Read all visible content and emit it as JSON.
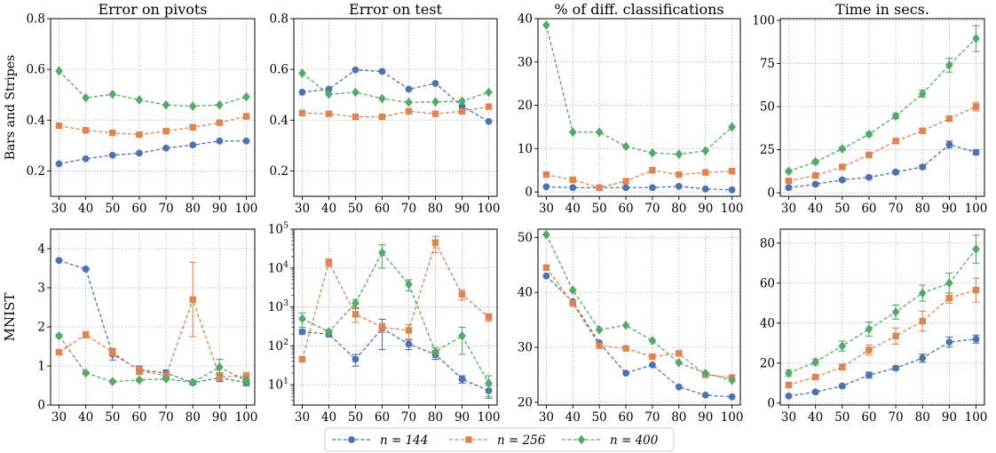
{
  "figure": {
    "col_titles": [
      "Error on pivots",
      "Error on test",
      "% of diff. classifications",
      "Time in secs."
    ],
    "row_labels": [
      "Bars and Stripes",
      "MNIST"
    ],
    "legend": [
      {
        "label": "n = 144",
        "color": "#4c72b0",
        "marker": "circle"
      },
      {
        "label": "n = 256",
        "color": "#dd8452",
        "marker": "square"
      },
      {
        "label": "n = 400",
        "color": "#55a868",
        "marker": "diamond"
      }
    ]
  },
  "chart_data": [
    {
      "type": "line",
      "title": "Error on pivots",
      "row": "Bars and Stripes",
      "x": [
        30,
        40,
        50,
        60,
        70,
        80,
        90,
        100
      ],
      "xticks": [
        "30",
        "40",
        "50",
        "60",
        "70",
        "80",
        "90",
        "100"
      ],
      "ylim": [
        0.1,
        0.8
      ],
      "yscale": "linear",
      "yticks": [
        0.2,
        0.4,
        0.6,
        0.8
      ],
      "ytick_labels": [
        "0.2",
        "0.4",
        "0.6",
        "0.8"
      ],
      "grid": true,
      "series": [
        {
          "name": "n = 144",
          "values": [
            0.228,
            0.248,
            0.262,
            0.27,
            0.29,
            0.302,
            0.318,
            0.318
          ]
        },
        {
          "name": "n = 256",
          "values": [
            0.378,
            0.36,
            0.35,
            0.343,
            0.357,
            0.372,
            0.39,
            0.415
          ]
        },
        {
          "name": "n = 400",
          "values": [
            0.594,
            0.488,
            0.502,
            0.48,
            0.46,
            0.455,
            0.46,
            0.492
          ]
        }
      ]
    },
    {
      "type": "line",
      "title": "Error on test",
      "row": "Bars and Stripes",
      "x": [
        30,
        40,
        50,
        60,
        70,
        80,
        90,
        100
      ],
      "xticks": [
        "30",
        "40",
        "50",
        "60",
        "70",
        "80",
        "90",
        "100"
      ],
      "ylim": [
        0.1,
        0.8
      ],
      "yscale": "linear",
      "yticks": [
        0.2,
        0.4,
        0.6,
        0.8
      ],
      "ytick_labels": [
        "0.2",
        "0.4",
        "0.6",
        "0.8"
      ],
      "grid": true,
      "series": [
        {
          "name": "n = 144",
          "values": [
            0.51,
            0.522,
            0.598,
            0.592,
            0.522,
            0.545,
            0.455,
            0.395
          ]
        },
        {
          "name": "n = 256",
          "values": [
            0.428,
            0.425,
            0.413,
            0.413,
            0.435,
            0.425,
            0.435,
            0.453
          ]
        },
        {
          "name": "n = 400",
          "values": [
            0.585,
            0.502,
            0.51,
            0.485,
            0.47,
            0.472,
            0.475,
            0.51
          ]
        }
      ]
    },
    {
      "type": "line",
      "title": "% of diff. classifications",
      "row": "Bars and Stripes",
      "x": [
        30,
        40,
        50,
        60,
        70,
        80,
        90,
        100
      ],
      "xticks": [
        "30",
        "40",
        "50",
        "60",
        "70",
        "80",
        "90",
        "100"
      ],
      "ylim": [
        -1,
        40
      ],
      "yscale": "linear",
      "yticks": [
        0,
        10,
        20,
        30,
        40
      ],
      "ytick_labels": [
        "0",
        "10",
        "20",
        "30",
        "40"
      ],
      "grid": true,
      "series": [
        {
          "name": "n = 144",
          "values": [
            1.2,
            1.0,
            1.0,
            1.0,
            1.0,
            1.3,
            0.7,
            0.5
          ]
        },
        {
          "name": "n = 256",
          "values": [
            4.0,
            2.8,
            1.0,
            2.5,
            5.0,
            4.0,
            4.5,
            4.8
          ]
        },
        {
          "name": "n = 400",
          "values": [
            38.5,
            13.8,
            13.8,
            10.5,
            9.0,
            8.7,
            9.5,
            15.0
          ]
        }
      ]
    },
    {
      "type": "line",
      "title": "Time in secs.",
      "row": "Bars and Stripes",
      "x": [
        30,
        40,
        50,
        60,
        70,
        80,
        90,
        100
      ],
      "xticks": [
        "30",
        "40",
        "50",
        "60",
        "70",
        "80",
        "90",
        "100"
      ],
      "ylim": [
        -2,
        101
      ],
      "yscale": "linear",
      "yticks": [
        0,
        25,
        50,
        75,
        100
      ],
      "ytick_labels": [
        "0",
        "25",
        "50",
        "75",
        "100"
      ],
      "grid": true,
      "series": [
        {
          "name": "n = 144",
          "values": [
            3,
            5,
            7.5,
            9,
            12,
            15,
            28,
            23.5
          ],
          "errors": [
            0.8,
            0.8,
            0.8,
            0.8,
            1,
            1,
            2,
            1.5
          ]
        },
        {
          "name": "n = 256",
          "values": [
            7,
            10,
            15,
            22,
            30,
            36,
            43,
            50
          ],
          "errors": [
            0.8,
            0.8,
            1,
            1,
            1.2,
            1.2,
            1.5,
            2.5
          ]
        },
        {
          "name": "n = 400",
          "values": [
            12.5,
            18,
            25.5,
            34,
            44.5,
            57.5,
            74,
            89.5
          ],
          "errors": [
            0.8,
            1,
            1,
            1.2,
            1.5,
            2,
            4,
            7.5
          ]
        }
      ]
    },
    {
      "type": "line",
      "title": "",
      "row": "MNIST",
      "x": [
        30,
        40,
        50,
        60,
        70,
        80,
        90,
        100
      ],
      "xticks": [
        "30",
        "40",
        "50",
        "60",
        "70",
        "80",
        "90",
        "100"
      ],
      "ylim": [
        0,
        4.5
      ],
      "yscale": "linear",
      "yticks": [
        0,
        1,
        2,
        3,
        4
      ],
      "ytick_labels": [
        "0",
        "1",
        "2",
        "3",
        "4"
      ],
      "grid": true,
      "series": [
        {
          "name": "n = 144",
          "values": [
            3.7,
            3.48,
            1.3,
            0.9,
            0.82,
            0.57,
            0.7,
            0.57
          ],
          "errors": [
            0.02,
            0.03,
            0.15,
            0.1,
            0.08,
            0.05,
            0.1,
            0.08
          ]
        },
        {
          "name": "n = 256",
          "values": [
            1.35,
            1.8,
            1.35,
            0.88,
            0.75,
            2.7,
            0.73,
            0.73
          ],
          "errors": [
            0.04,
            0.08,
            0.1,
            0.1,
            0.08,
            0.95,
            0.1,
            0.1
          ]
        },
        {
          "name": "n = 400",
          "values": [
            1.77,
            0.82,
            0.6,
            0.64,
            0.67,
            0.58,
            0.97,
            0.62
          ],
          "errors": [
            0.04,
            0.04,
            0.03,
            0.03,
            0.03,
            0.03,
            0.2,
            0.1
          ]
        }
      ]
    },
    {
      "type": "line",
      "title": "",
      "row": "MNIST",
      "x": [
        30,
        40,
        50,
        60,
        70,
        80,
        90,
        100
      ],
      "xticks": [
        "30",
        "40",
        "50",
        "60",
        "70",
        "80",
        "90",
        "100"
      ],
      "ylim": [
        3,
        100000
      ],
      "yscale": "log",
      "yticks": [
        10,
        100,
        1000,
        10000,
        100000
      ],
      "ytick_labels": [
        "10^1",
        "10^2",
        "10^3",
        "10^4",
        "10^5"
      ],
      "grid": true,
      "series": [
        {
          "name": "n = 144",
          "values": [
            230,
            200,
            45,
            280,
            110,
            60,
            14,
            7
          ],
          "errors": [
            30,
            30,
            15,
            200,
            30,
            15,
            3,
            2.5
          ]
        },
        {
          "name": "n = 256",
          "values": [
            45,
            14000,
            650,
            300,
            250,
            45000,
            2100,
            550
          ],
          "errors": [
            5,
            3000,
            250,
            80,
            100,
            20000,
            600,
            120
          ]
        },
        {
          "name": "n = 400",
          "values": [
            500,
            230,
            1250,
            25000,
            3800,
            70,
            180,
            11
          ],
          "errors": [
            200,
            30,
            300,
            15000,
            1200,
            20,
            120,
            6
          ]
        }
      ]
    },
    {
      "type": "line",
      "title": "",
      "row": "MNIST",
      "x": [
        30,
        40,
        50,
        60,
        70,
        80,
        90,
        100
      ],
      "xticks": [
        "30",
        "40",
        "50",
        "60",
        "70",
        "80",
        "90",
        "100"
      ],
      "ylim": [
        19.5,
        51.5
      ],
      "yscale": "linear",
      "yticks": [
        20,
        30,
        40,
        50
      ],
      "ytick_labels": [
        "20",
        "30",
        "40",
        "50"
      ],
      "grid": true,
      "series": [
        {
          "name": "n = 144",
          "values": [
            43.0,
            38.3,
            30.8,
            25.3,
            26.8,
            22.8,
            21.3,
            21.0
          ]
        },
        {
          "name": "n = 256",
          "values": [
            44.5,
            38.0,
            30.3,
            29.8,
            28.3,
            28.9,
            25.0,
            24.5
          ]
        },
        {
          "name": "n = 400",
          "values": [
            50.5,
            40.4,
            33.2,
            34.0,
            31.2,
            27.2,
            25.3,
            24.0
          ]
        }
      ]
    },
    {
      "type": "line",
      "title": "",
      "row": "MNIST",
      "x": [
        30,
        40,
        50,
        60,
        70,
        80,
        90,
        100
      ],
      "xticks": [
        "30",
        "40",
        "50",
        "60",
        "70",
        "80",
        "90",
        "100"
      ],
      "ylim": [
        -1,
        87
      ],
      "yscale": "linear",
      "yticks": [
        0,
        20,
        40,
        60,
        80
      ],
      "ytick_labels": [
        "0",
        "20",
        "40",
        "60",
        "80"
      ],
      "grid": true,
      "series": [
        {
          "name": "n = 144",
          "values": [
            3.5,
            5.5,
            8.5,
            14,
            17.5,
            22.5,
            30.5,
            32
          ],
          "errors": [
            0.5,
            0.7,
            0.8,
            1.5,
            1,
            2,
            2.5,
            2
          ]
        },
        {
          "name": "n = 256",
          "values": [
            9,
            13,
            18,
            26.5,
            33.5,
            41,
            52.5,
            56.5
          ],
          "errors": [
            1,
            1,
            1.5,
            2.5,
            4,
            5,
            2.5,
            6
          ]
        },
        {
          "name": "n = 400",
          "values": [
            15,
            20.5,
            28.5,
            37,
            45.5,
            55,
            60,
            77
          ],
          "errors": [
            1.5,
            1.5,
            2.5,
            3.5,
            3.5,
            4,
            5,
            7
          ]
        }
      ]
    }
  ]
}
